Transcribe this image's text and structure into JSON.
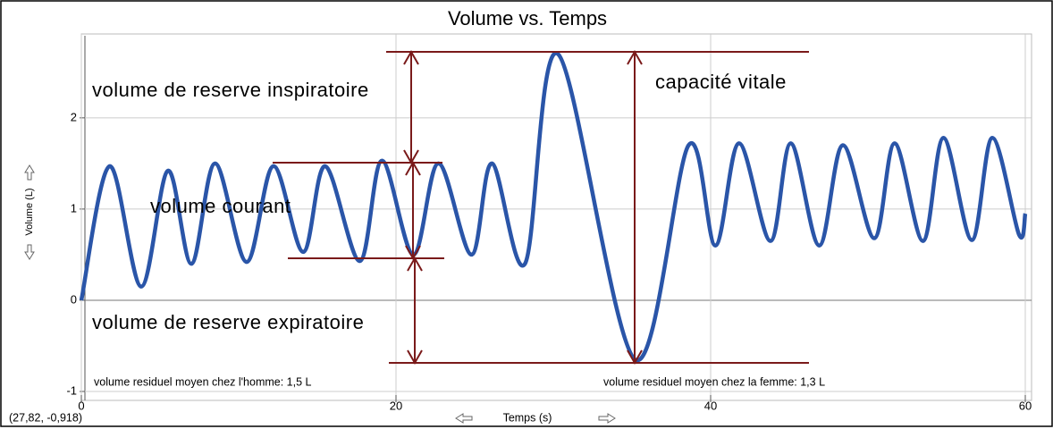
{
  "chart_data": {
    "type": "line",
    "title": "Volume vs. Temps",
    "x_label": "Temps (s)",
    "y_label": "Volume (L)",
    "xlim": [
      0,
      60
    ],
    "ylim": [
      -1,
      2.9
    ],
    "xticks": [
      0,
      20,
      40,
      60
    ],
    "yticks": [
      -1,
      0,
      1,
      2
    ],
    "grid": true,
    "series": [
      {
        "name": "Volume",
        "color": "#2a55a8",
        "x": [
          0,
          1.8,
          3.8,
          5.5,
          7,
          8.5,
          10.5,
          12.2,
          14.1,
          15.5,
          17.7,
          19.1,
          21.1,
          22.7,
          24.8,
          26.1,
          28.2,
          30.3,
          35.2,
          38.6,
          40.3,
          41.8,
          43.8,
          45.1,
          46.9,
          48.4,
          50.4,
          51.7,
          53.5,
          54.8,
          56.6,
          57.9,
          59.6,
          60
        ],
        "values": [
          0,
          1.47,
          0.15,
          1.42,
          0.4,
          1.5,
          0.42,
          1.47,
          0.53,
          1.47,
          0.43,
          1.53,
          0.5,
          1.5,
          0.5,
          1.5,
          0.4,
          2.7,
          -0.65,
          1.7,
          0.6,
          1.72,
          0.65,
          1.72,
          0.6,
          1.7,
          0.68,
          1.72,
          0.65,
          1.78,
          0.66,
          1.78,
          0.72,
          0.95
        ]
      }
    ],
    "annotations": {
      "irv": "volume de reserve inspiratoire",
      "vc": "capacité vitale",
      "tv": "volume courant",
      "erv": "volume de reserve expiratoire",
      "rv_men": "volume residuel moyen chez l'homme: 1,5 L",
      "rv_women": "volume residuel moyen chez la femme: 1,3 L"
    },
    "cursor": "(27,82, -0,918)"
  }
}
